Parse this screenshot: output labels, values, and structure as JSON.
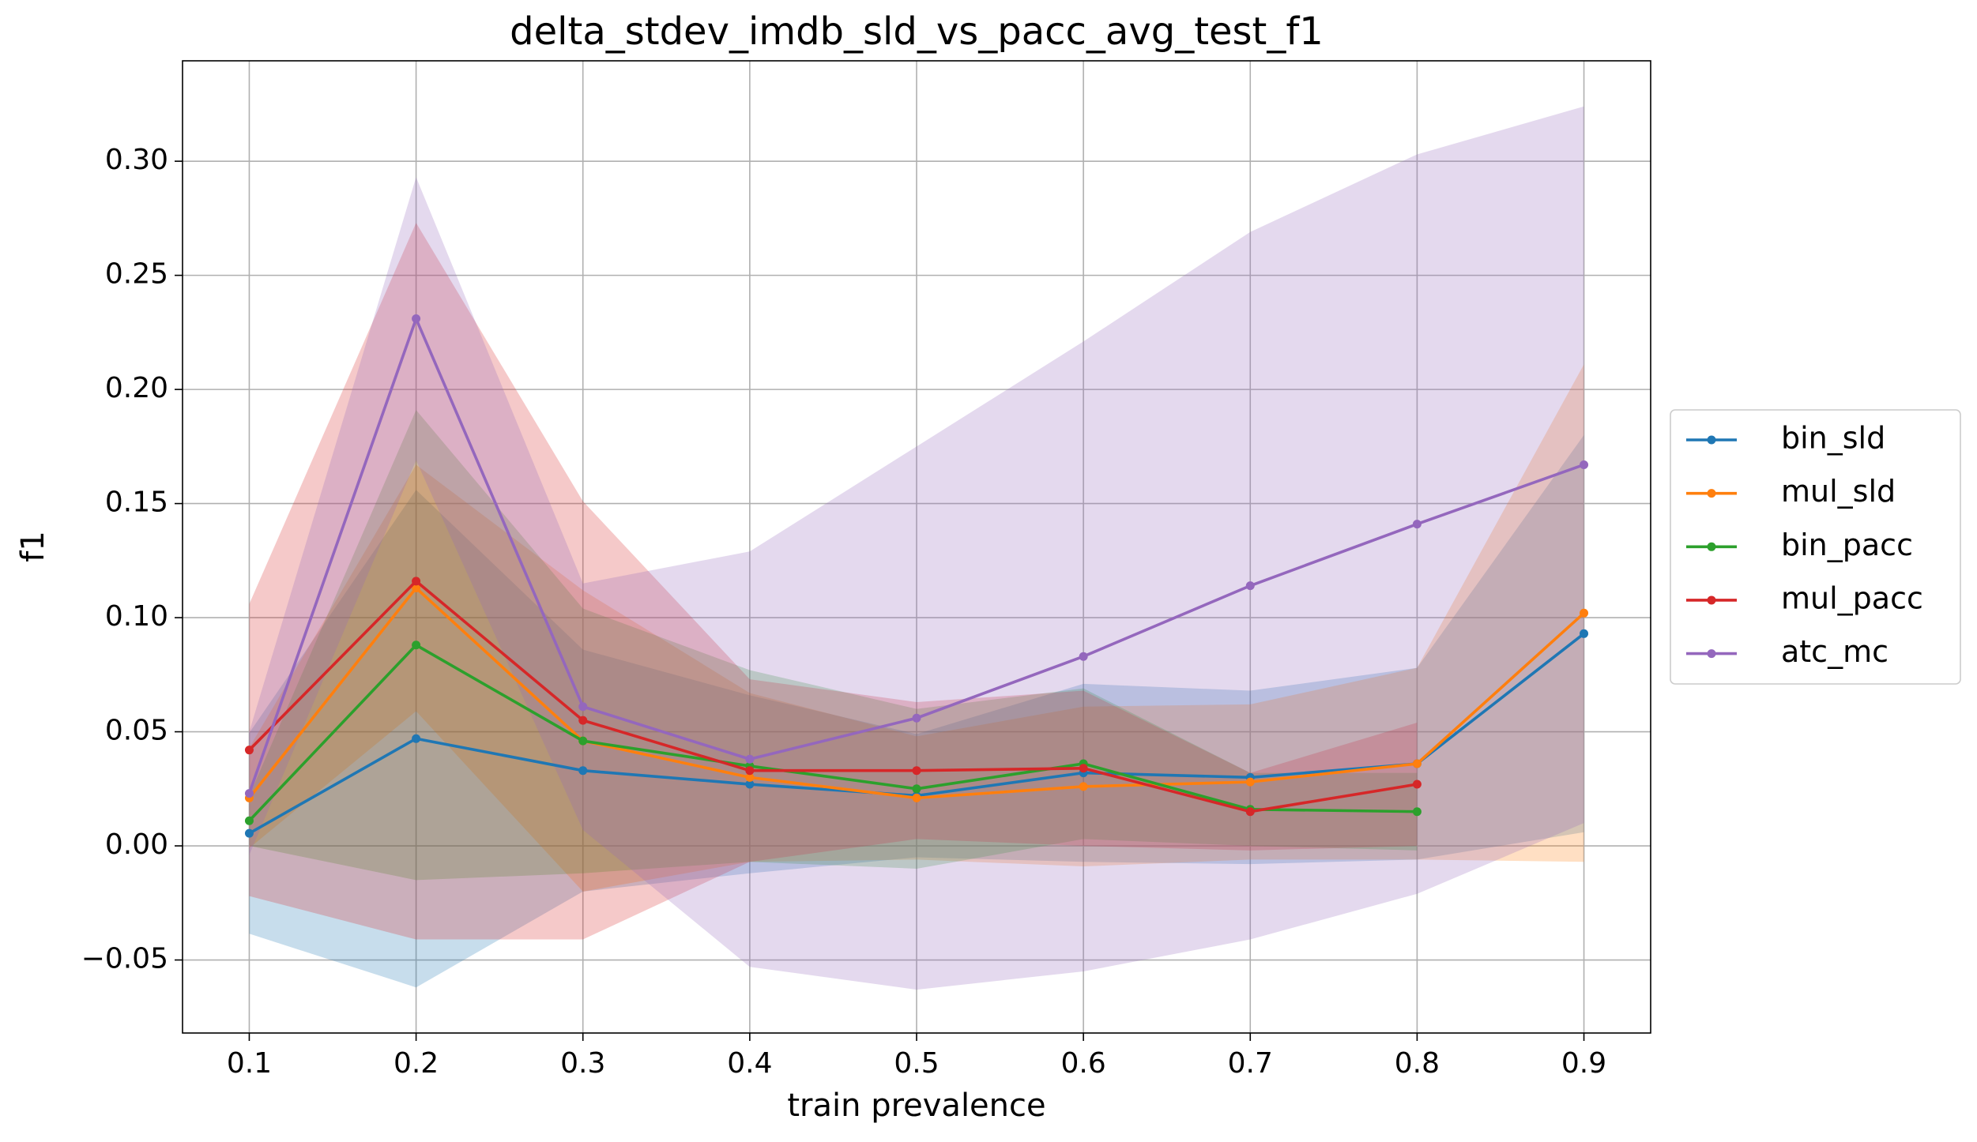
{
  "chart_data": {
    "type": "line",
    "title": "delta_stdev_imdb_sld_vs_pacc_avg_test_f1",
    "x_label": "train prevalence",
    "y_label": "f1",
    "x": [
      0.1,
      0.2,
      0.3,
      0.4,
      0.5,
      0.6,
      0.7,
      0.8,
      0.9
    ],
    "xlim": [
      0.06,
      0.94
    ],
    "xticks": [
      0.1,
      0.2,
      0.3,
      0.4,
      0.5,
      0.6,
      0.7,
      0.8,
      0.9
    ],
    "ylim": [
      -0.082,
      0.344
    ],
    "yticks": [
      {
        "value": -0.05,
        "label": "−0.05"
      },
      {
        "value": 0,
        "label": "0.00"
      },
      {
        "value": 0.05,
        "label": "0.05"
      },
      {
        "value": 0.1,
        "label": "0.10"
      },
      {
        "value": 0.15,
        "label": "0.15"
      },
      {
        "value": 0.2,
        "label": "0.20"
      },
      {
        "value": 0.25,
        "label": "0.25"
      },
      {
        "value": 0.3,
        "label": "0.30"
      }
    ],
    "grid": true,
    "legend": "right",
    "series": [
      {
        "name": "bin_sld",
        "color": "#1f77b4",
        "values": [
          0.0055,
          0.047,
          0.033,
          0.027,
          0.022,
          0.032,
          0.03,
          0.036,
          0.093
        ],
        "stdev": [
          0.044,
          0.109,
          0.053,
          0.039,
          0.027,
          0.039,
          0.038,
          0.042,
          0.087
        ]
      },
      {
        "name": "mul_sld",
        "color": "#ff7f0e",
        "values": [
          0.021,
          0.113,
          0.046,
          0.03,
          0.021,
          0.026,
          0.028,
          0.036,
          0.102
        ],
        "stdev": [
          0.022,
          0.054,
          0.066,
          0.037,
          0.027,
          0.035,
          0.034,
          0.042,
          0.109
        ]
      },
      {
        "name": "bin_pacc",
        "color": "#2ca02c",
        "values": [
          0.011,
          0.088,
          0.046,
          0.035,
          0.025,
          0.036,
          0.016,
          0.015,
          null
        ],
        "stdev": [
          0.011,
          0.103,
          0.058,
          0.042,
          0.035,
          0.033,
          0.016,
          0.017,
          null
        ]
      },
      {
        "name": "mul_pacc",
        "color": "#d62728",
        "values": [
          0.042,
          0.116,
          0.055,
          0.033,
          0.033,
          0.034,
          0.015,
          0.027,
          null
        ],
        "stdev": [
          0.064,
          0.157,
          0.096,
          0.04,
          0.03,
          0.034,
          0.017,
          0.027,
          null
        ]
      },
      {
        "name": "atc_mc",
        "color": "#9467bd",
        "values": [
          0.023,
          0.231,
          0.061,
          0.038,
          0.056,
          0.083,
          0.114,
          0.141,
          0.167
        ],
        "stdev": [
          0.027,
          0.062,
          0.054,
          0.091,
          0.119,
          0.138,
          0.155,
          0.162,
          0.157
        ]
      }
    ]
  }
}
